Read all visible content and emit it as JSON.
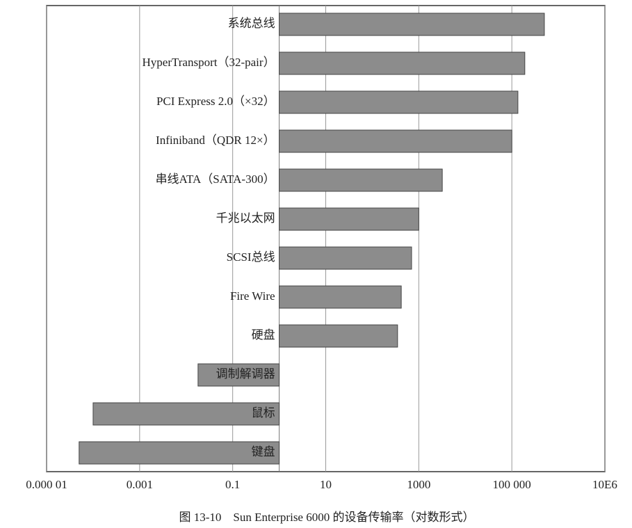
{
  "chart_data": {
    "type": "bar",
    "orientation": "horizontal",
    "log_scale": true,
    "grid": true,
    "caption": "图 13-10　Sun Enterprise 6000 的设备传输率（对数形式）",
    "categories": [
      "系统总线",
      "HyperTransport（32-pair）",
      "PCI Express 2.0（×32）",
      "Infiniband（QDR 12×）",
      "串线ATA（SATA-300）",
      "千兆以太网",
      "SCSI总线",
      "Fire Wire",
      "硬盘",
      "调制解调器",
      "鼠标",
      "键盘"
    ],
    "values": [
      500000,
      190000,
      135000,
      100000,
      3200,
      1000,
      700,
      420,
      350,
      0.018,
      0.0001,
      5e-05
    ],
    "color": "#8c8c8c",
    "xlim": [
      1e-05,
      10000000
    ],
    "xticks": [
      {
        "value": 1e-05,
        "label": "0.000 01"
      },
      0.001,
      0.1,
      10,
      1000,
      {
        "value": 100000,
        "label": "100 000"
      },
      {
        "value": 10000000,
        "label": "10E6"
      }
    ]
  }
}
